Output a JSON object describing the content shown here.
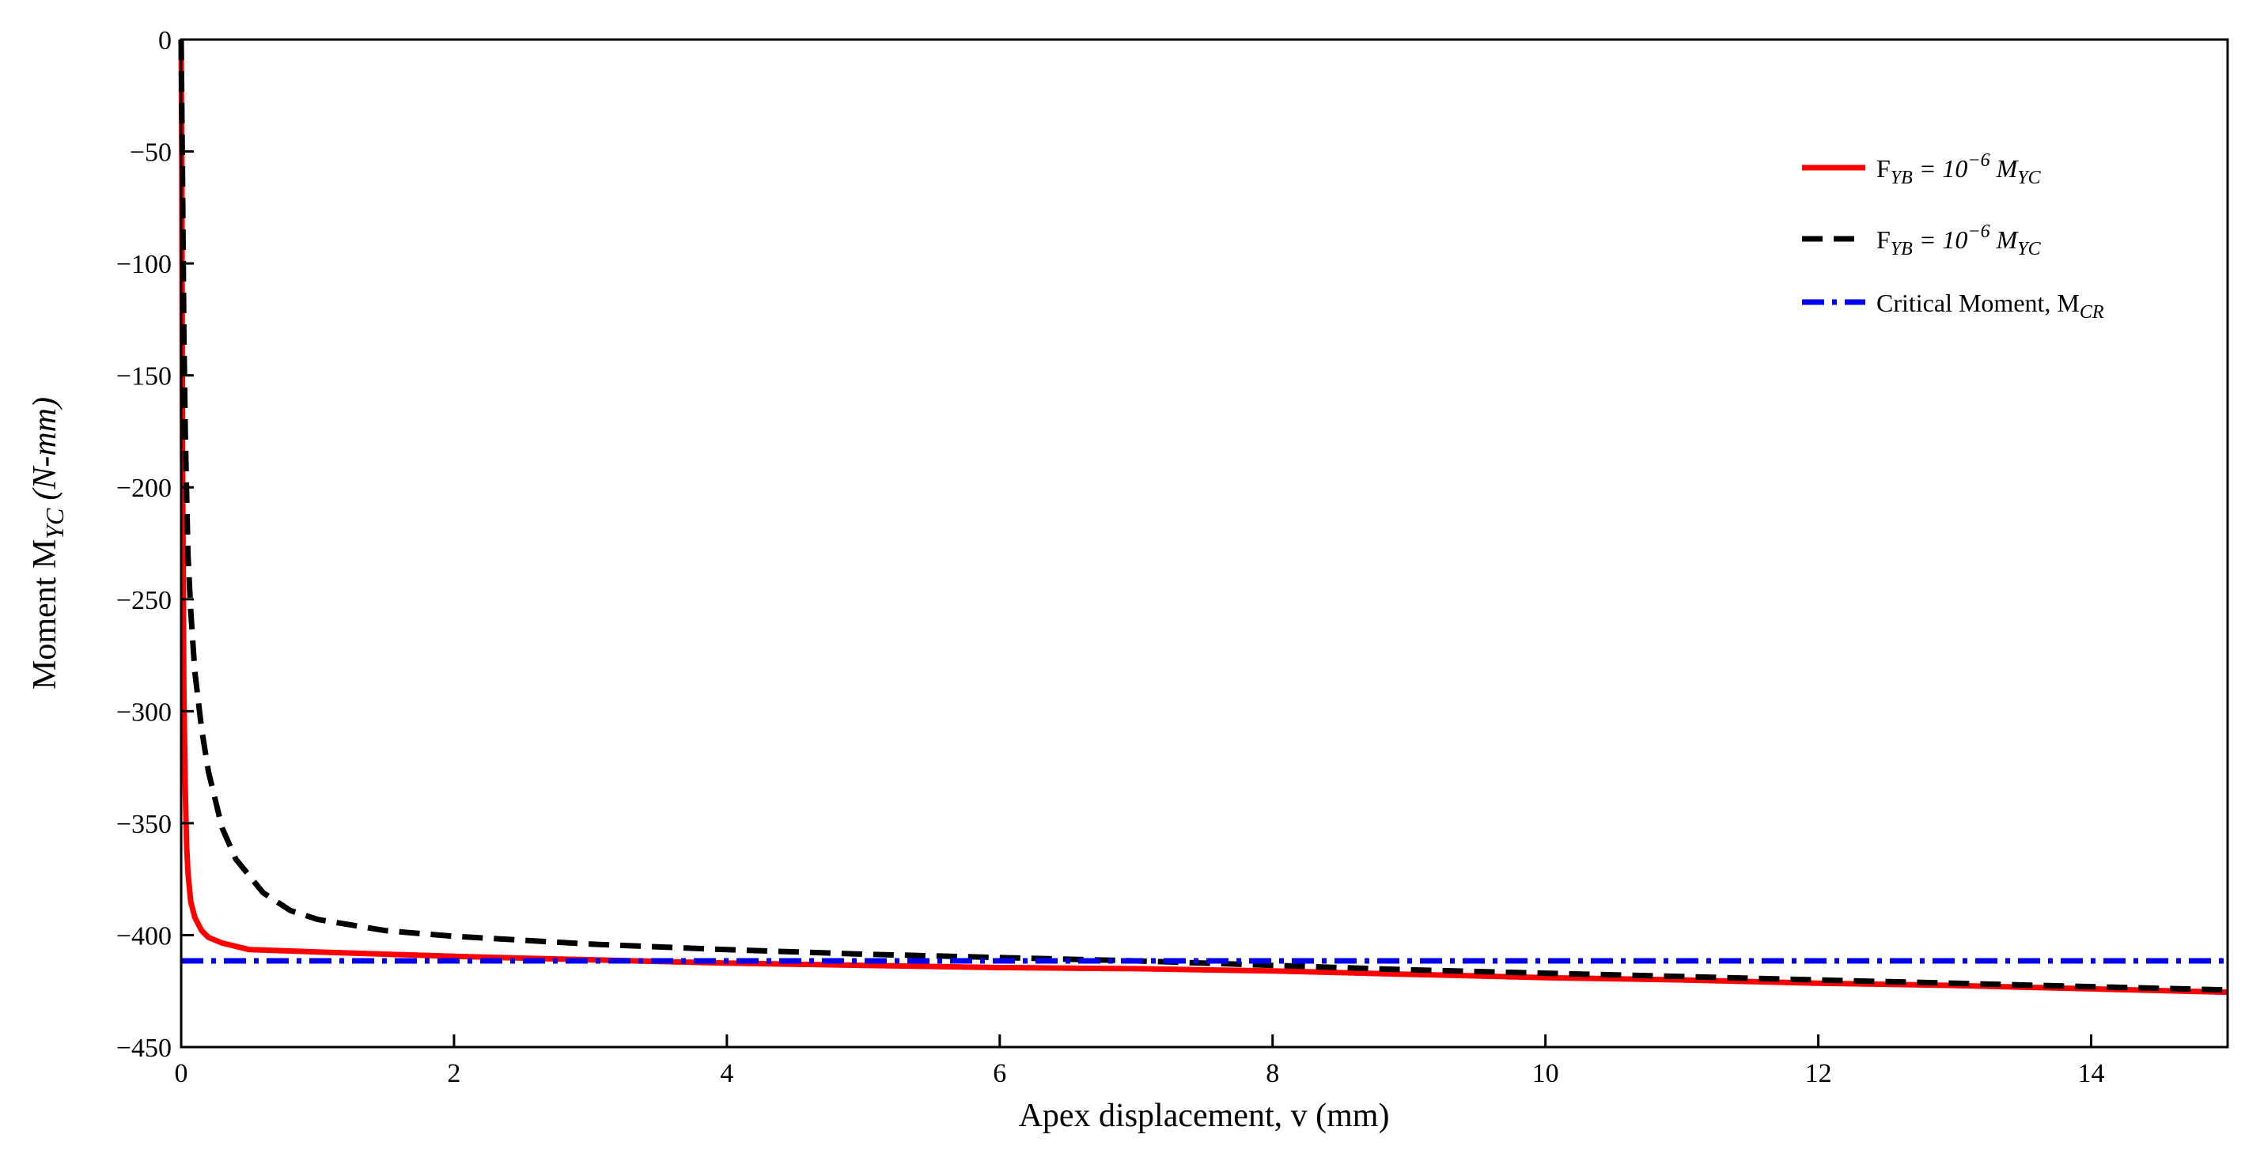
{
  "chart_data": {
    "type": "line",
    "title": "",
    "xlabel": "Apex displacement, v  (mm)",
    "ylabel": {
      "main": "Moment M",
      "sub": "YC",
      "unit": "(N-mm)"
    },
    "xlim": [
      0,
      15
    ],
    "ylim": [
      -450,
      0
    ],
    "xticks": [
      0,
      2,
      4,
      6,
      8,
      10,
      12,
      14
    ],
    "yticks": [
      0,
      -50,
      -100,
      -150,
      -200,
      -250,
      -300,
      -350,
      -400,
      -450
    ],
    "xtick_labels": [
      "0",
      "2",
      "4",
      "6",
      "8",
      "10",
      "12",
      "14"
    ],
    "ytick_labels": [
      "0",
      "−50",
      "−100",
      "−150",
      "−200",
      "−250",
      "−300",
      "−350",
      "−400",
      "−450"
    ],
    "grid": false,
    "legend_position": "top-right",
    "series": [
      {
        "legend": {
          "prefix": "F",
          "sub1": "YB",
          "eq": " = 10",
          "sup": "−6",
          "mid": " M",
          "sub2": "YC"
        },
        "color": "#ff0000",
        "style": "solid",
        "x": [
          0,
          0.005,
          0.01,
          0.02,
          0.03,
          0.04,
          0.05,
          0.07,
          0.1,
          0.15,
          0.2,
          0.3,
          0.5,
          1,
          2,
          3,
          4,
          5,
          6,
          7,
          8,
          9,
          10,
          11,
          12,
          13,
          14,
          15
        ],
        "y": [
          0,
          -60,
          -180,
          -290,
          -335,
          -360,
          -372,
          -385,
          -392,
          -398,
          -401,
          -403.5,
          -406.5,
          -407.5,
          -409.5,
          -411,
          -412.5,
          -413.5,
          -414.5,
          -415,
          -416,
          -417.5,
          -419,
          -420,
          -421.5,
          -422.5,
          -424,
          -425.5
        ]
      },
      {
        "legend": {
          "prefix": "F",
          "sub1": "YB",
          "eq": " = 10",
          "sup": "−6",
          "mid": " M",
          "sub2": "YC"
        },
        "color": "#000000",
        "style": "dashed",
        "x": [
          0,
          0.01,
          0.02,
          0.03,
          0.05,
          0.07,
          0.1,
          0.15,
          0.2,
          0.3,
          0.4,
          0.6,
          0.8,
          1,
          1.5,
          2,
          3,
          4,
          5,
          6,
          7,
          8,
          9,
          10,
          11,
          12,
          13,
          14,
          15
        ],
        "y": [
          0,
          -60,
          -130,
          -175,
          -230,
          -255,
          -282,
          -308,
          -327,
          -352,
          -366,
          -381,
          -389,
          -393,
          -398,
          -400.5,
          -404,
          -406.5,
          -408.5,
          -410,
          -411.5,
          -413.5,
          -415.5,
          -417,
          -418.5,
          -420,
          -421.5,
          -423,
          -424.5
        ]
      },
      {
        "legend": {
          "text": "Critical Moment, M",
          "sub": "CR"
        },
        "color": "#0000ee",
        "style": "dashdot",
        "x": [
          0,
          15
        ],
        "y": [
          -411.5,
          -411.5
        ]
      }
    ]
  }
}
